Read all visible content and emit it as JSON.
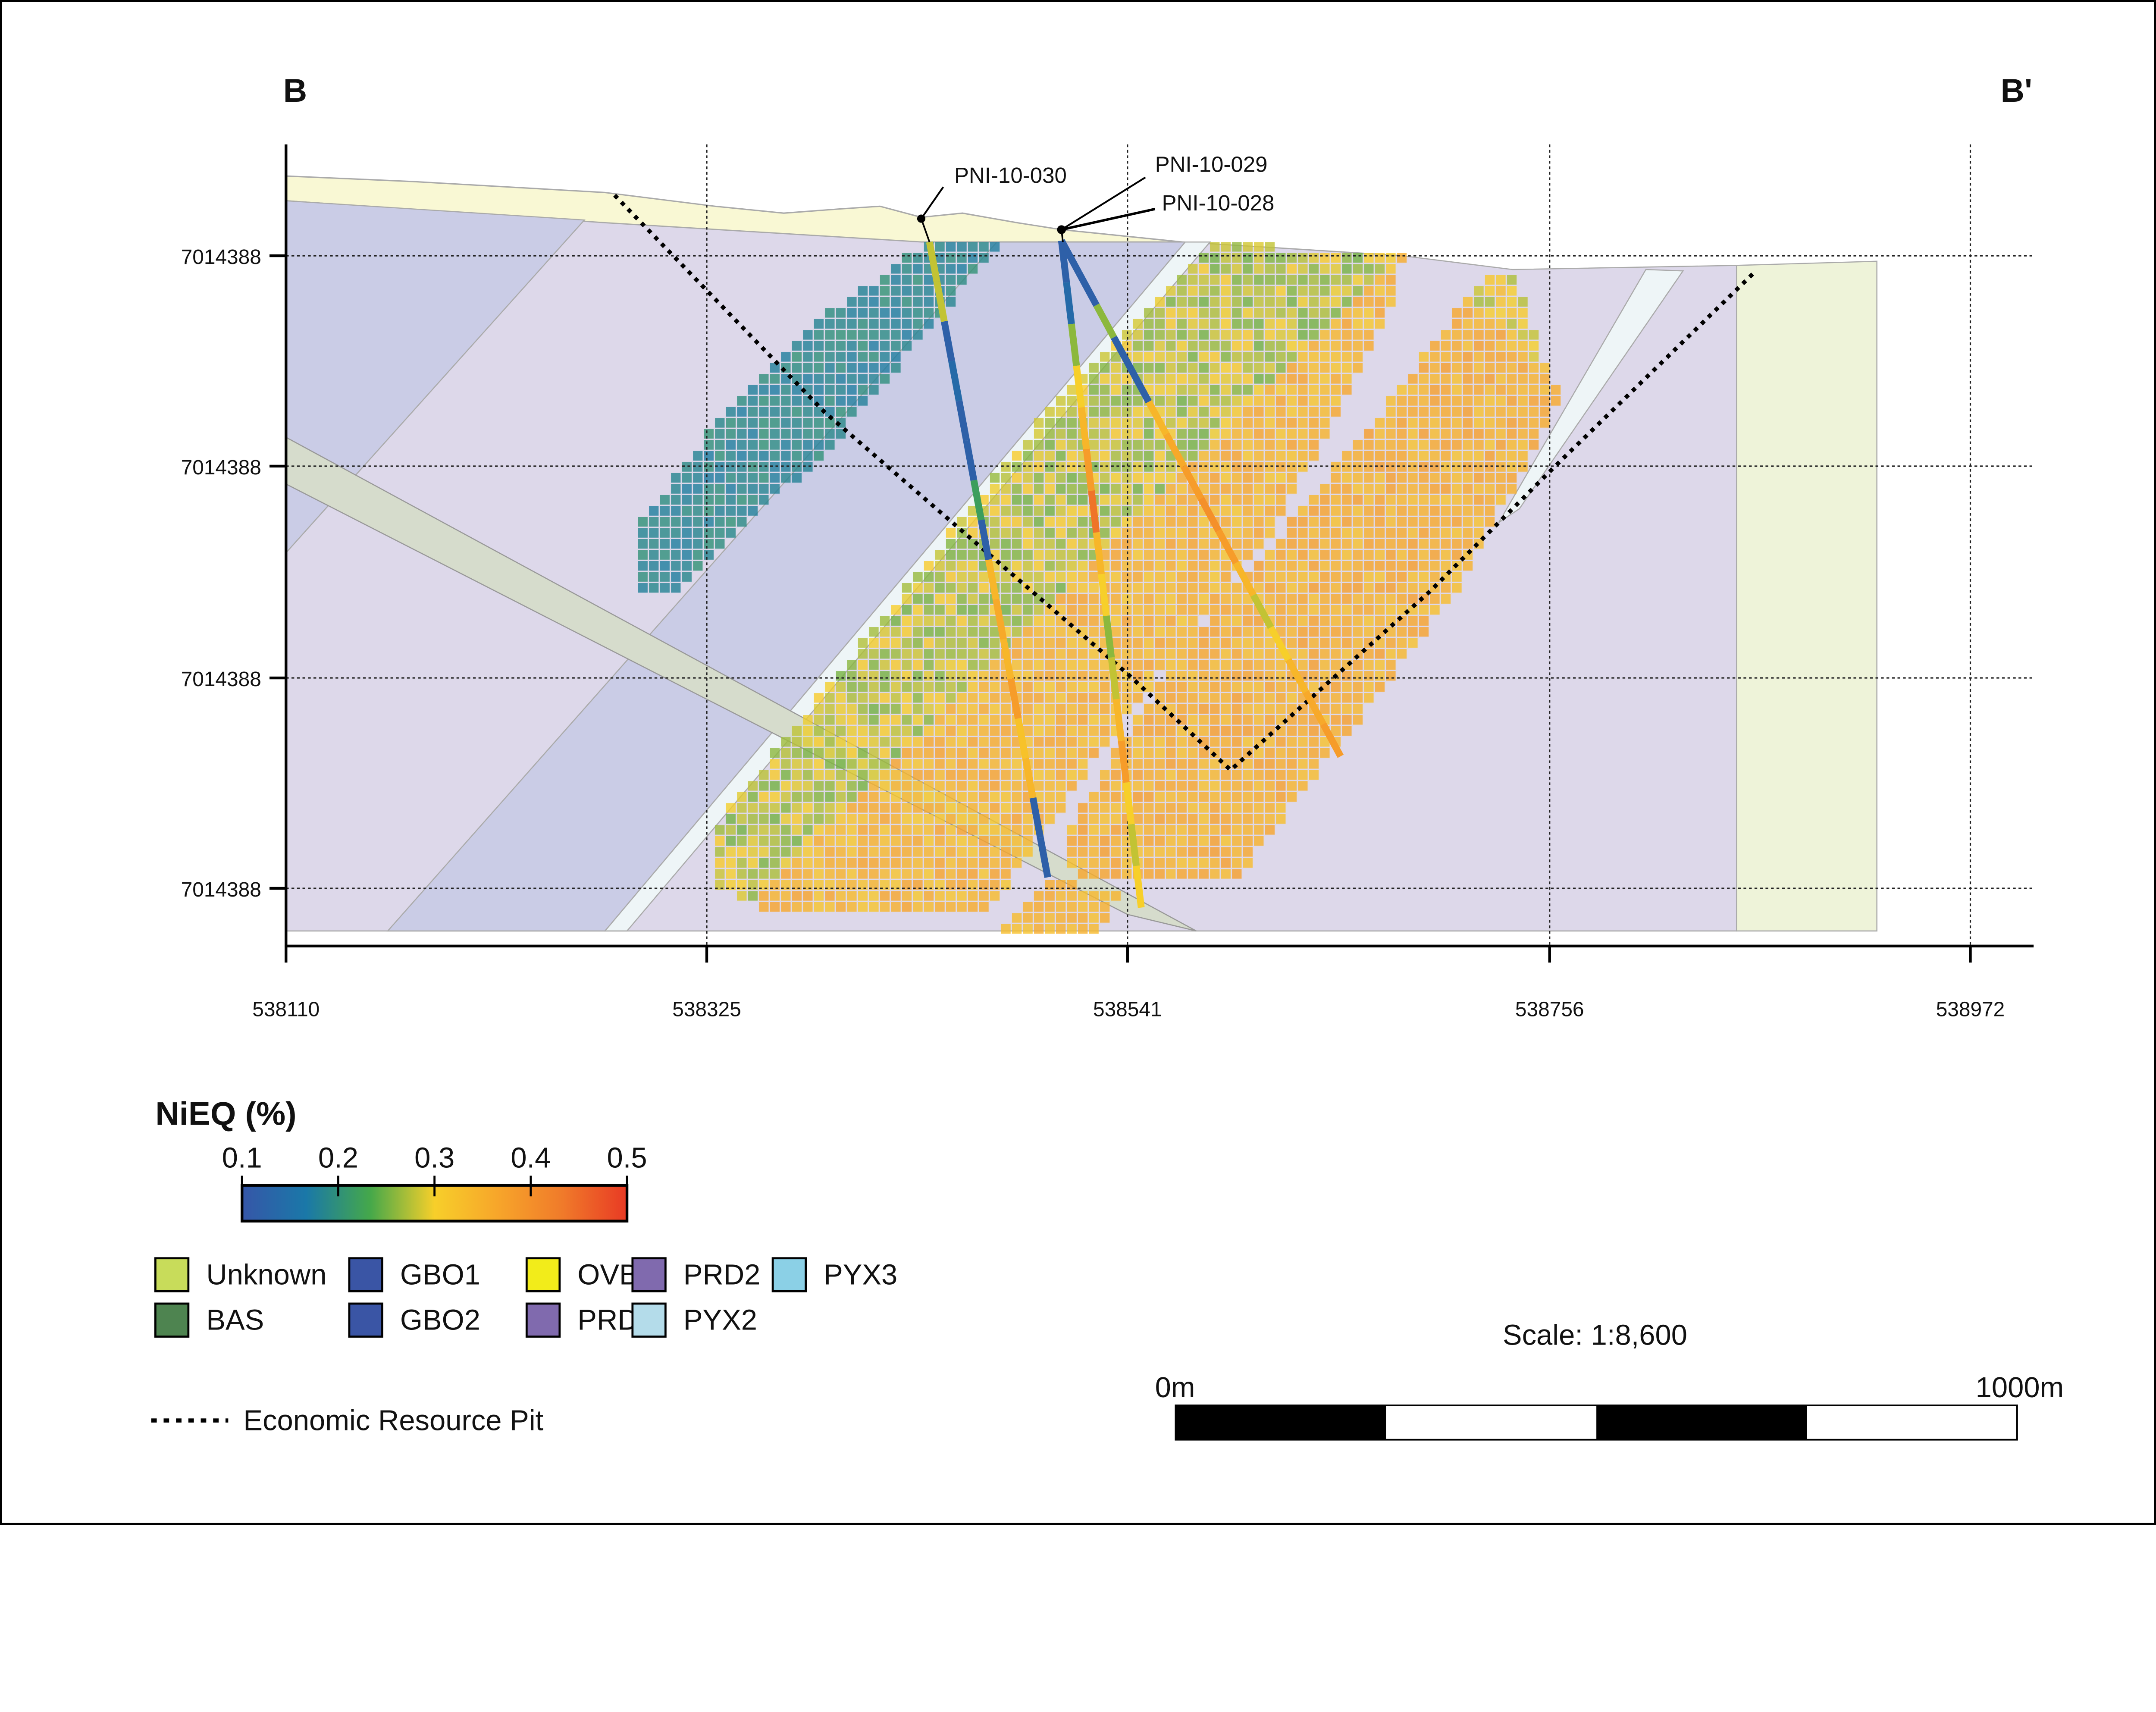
{
  "section": {
    "start_label": "B",
    "end_label": "B'",
    "x_ticks": [
      "538110",
      "538325",
      "538541",
      "538756",
      "538972"
    ],
    "y_ticks": [
      "7014388",
      "7014388",
      "7014388",
      "7014388"
    ],
    "drillholes": [
      {
        "id": "PNI-10-030"
      },
      {
        "id": "PNI-10-029"
      },
      {
        "id": "PNI-10-028"
      }
    ]
  },
  "grade_legend": {
    "title": "NiEQ (%)",
    "ticks": [
      "0.1",
      "0.2",
      "0.3",
      "0.4",
      "0.5"
    ],
    "range": [
      0.1,
      0.5
    ],
    "gradient_colors": [
      "#3656a8",
      "#1a78a8",
      "#45a84a",
      "#f7cf2a",
      "#f7a52a",
      "#f07a2a",
      "#e83a24"
    ]
  },
  "lithology_legend": [
    {
      "label": "Unknown",
      "color": "#c8dc5a"
    },
    {
      "label": "GBO1",
      "color": "#3a55a5"
    },
    {
      "label": "OVB",
      "color": "#f2ec1a"
    },
    {
      "label": "PRD2",
      "color": "#806aae"
    },
    {
      "label": "PYX3",
      "color": "#8bd0e6"
    },
    {
      "label": "BAS",
      "color": "#4e8450"
    },
    {
      "label": "GBO2",
      "color": "#3a55a5"
    },
    {
      "label": "PRD1",
      "color": "#806aae"
    },
    {
      "label": "PYX2",
      "color": "#b4dcea"
    }
  ],
  "pit_legend": {
    "label": "Economic Resource Pit"
  },
  "scale": {
    "text": "Scale: 1:8,600",
    "start_label": "0m",
    "end_label": "1000m"
  }
}
